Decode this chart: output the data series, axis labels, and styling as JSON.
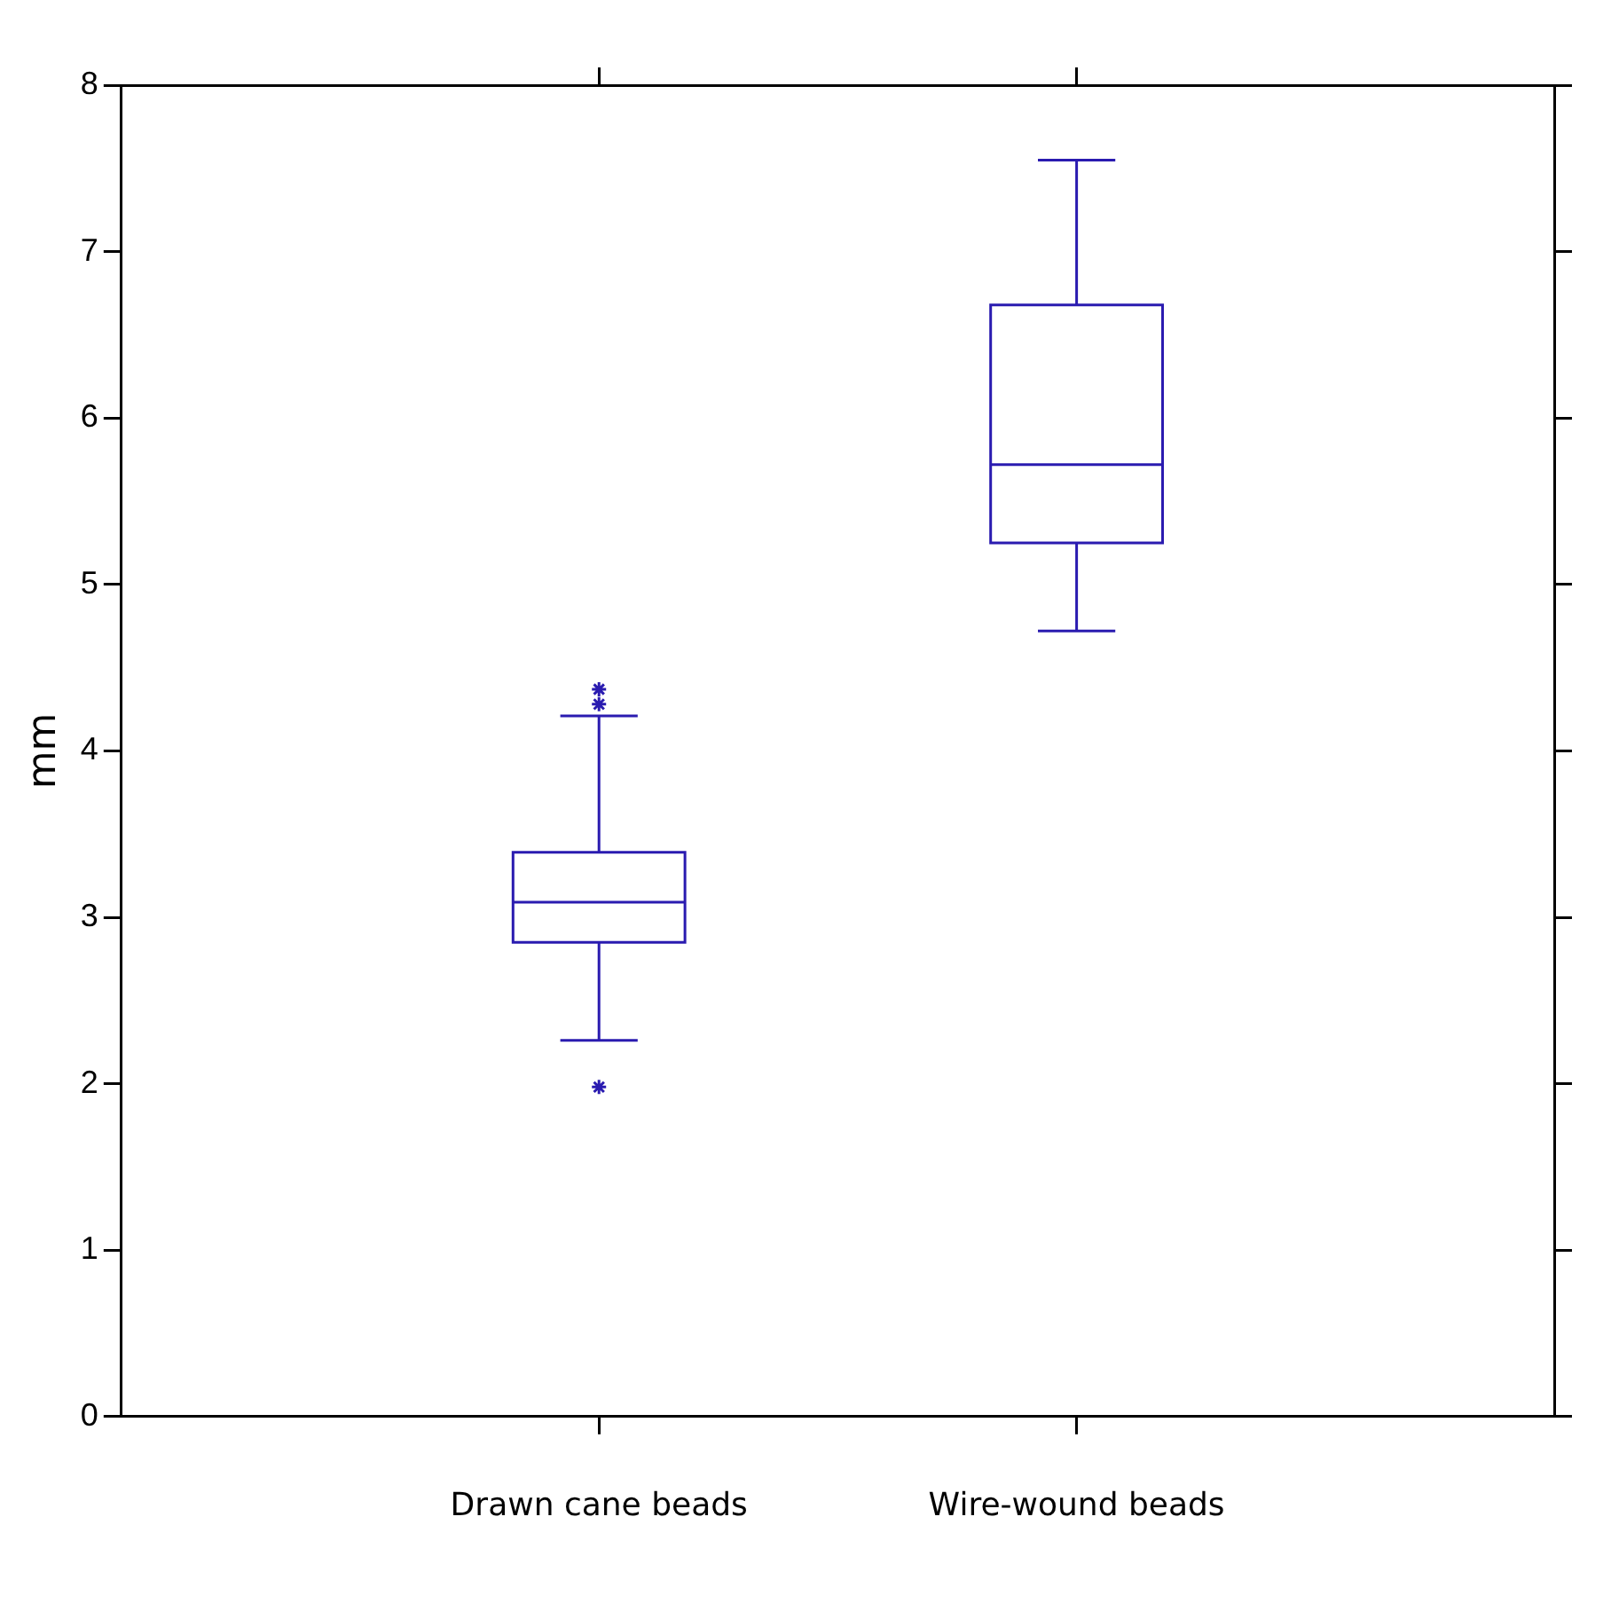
{
  "chart_data": {
    "type": "box",
    "ylabel": "mm",
    "categories": [
      "Drawn cane beads",
      "Wire-wound beads"
    ],
    "color": "#2a1bb0",
    "ylim": [
      0,
      8
    ],
    "yticks": [
      0,
      1,
      2,
      3,
      4,
      5,
      6,
      7,
      8
    ],
    "grid": false,
    "boxes": [
      {
        "low": 2.26,
        "q1": 2.85,
        "median": 3.09,
        "q3": 3.39,
        "high": 4.21,
        "outliers": [
          4.37,
          4.28,
          1.98
        ]
      },
      {
        "low": 4.72,
        "q1": 5.25,
        "median": 5.72,
        "q3": 6.68,
        "high": 7.55
      }
    ]
  }
}
